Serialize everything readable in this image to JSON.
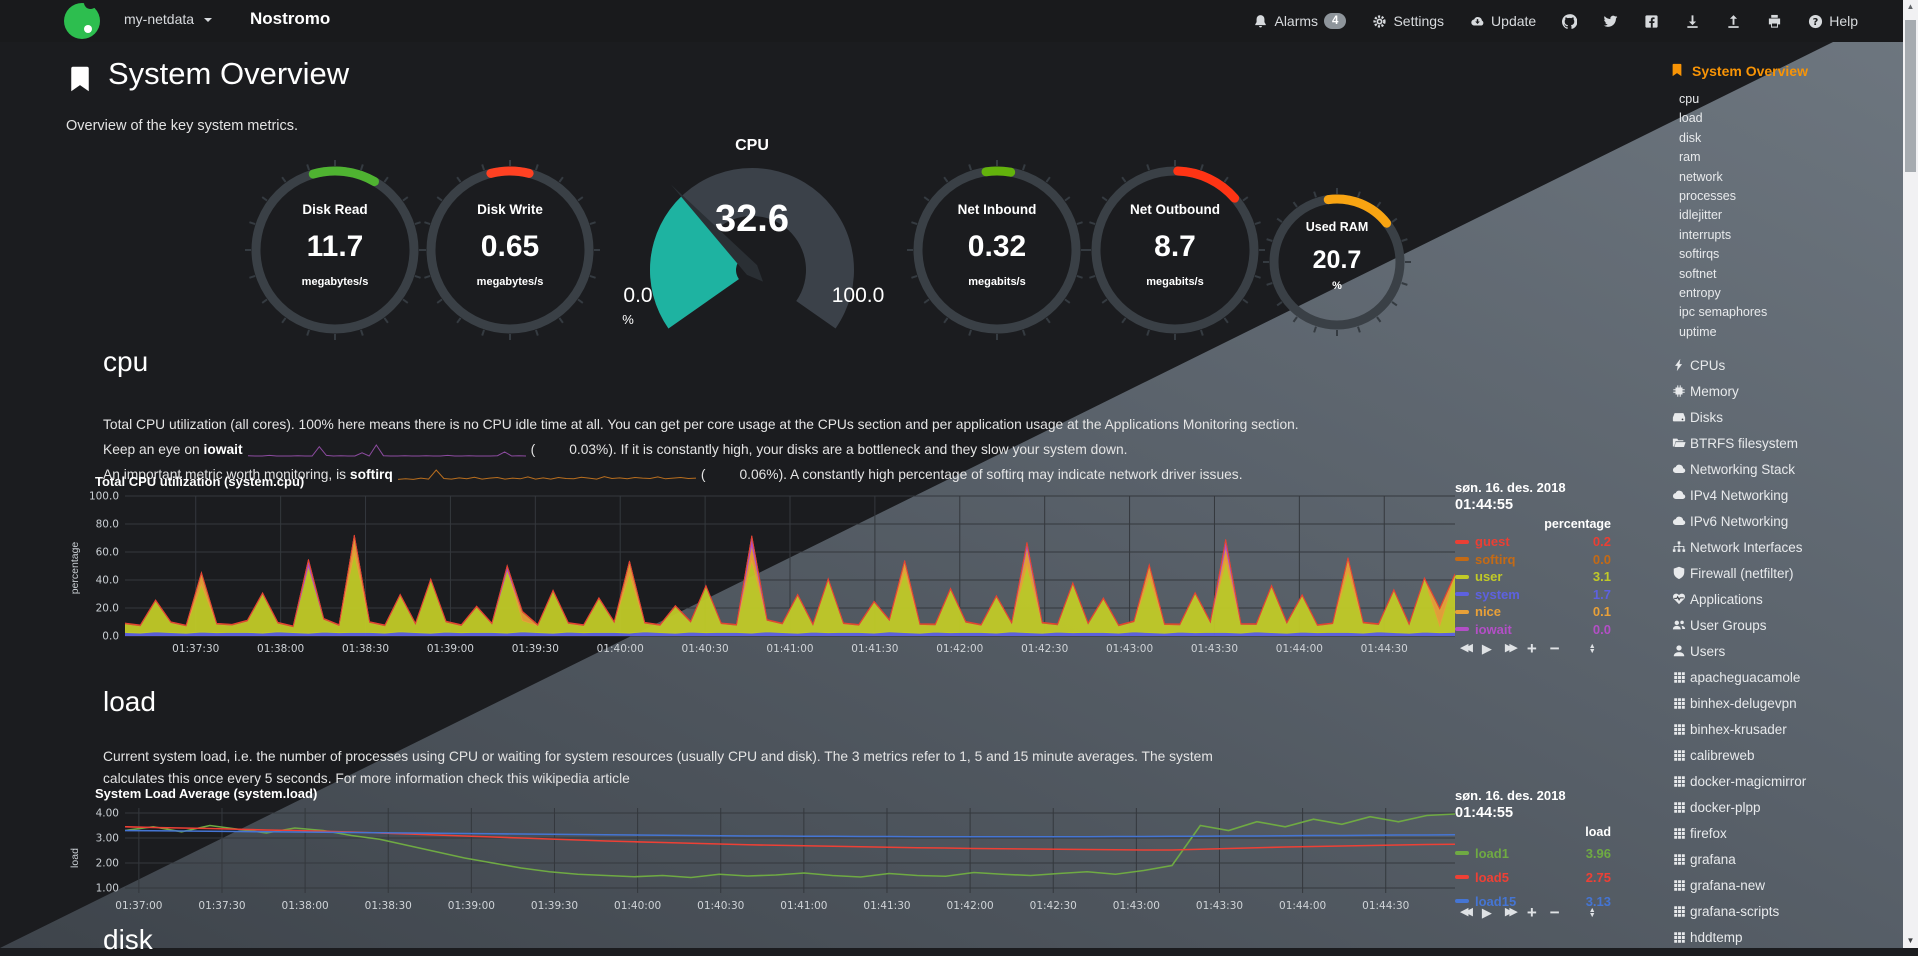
{
  "navbar": {
    "brand": "my-netdata",
    "hostname": "Nostromo",
    "alarms": {
      "label": "Alarms",
      "count": "4"
    },
    "settings_label": "Settings",
    "update_label": "Update",
    "help_label": "Help",
    "icon_names": [
      "bell-icon",
      "gear-icon",
      "cloud-download-icon",
      "github-icon",
      "twitter-icon",
      "facebook-icon",
      "download-icon",
      "upload-icon",
      "print-icon",
      "question-icon"
    ]
  },
  "page": {
    "title": "System Overview",
    "subtitle": "Overview of the key system metrics.",
    "accent_color": "#f89406"
  },
  "gauges": {
    "pies": [
      {
        "title": "Disk Read",
        "value": "11.7",
        "unit": "megabytes/s",
        "color": "#4fb331",
        "arc": [
          -16,
          30
        ]
      },
      {
        "title": "Disk Write",
        "value": "0.65",
        "unit": "megabytes/s",
        "color": "#ff4122",
        "arc": [
          -14,
          14
        ]
      },
      {
        "title": "Net Inbound",
        "value": "0.32",
        "unit": "megabits/s",
        "color": "#63b20c",
        "arc": [
          -8,
          10
        ]
      },
      {
        "title": "Net Outbound",
        "value": "8.7",
        "unit": "megabits/s",
        "color": "#ff3414",
        "arc": [
          2,
          49
        ]
      },
      {
        "title": "Used RAM",
        "value": "20.7",
        "unit": "%",
        "color": "#f8a412",
        "arc": [
          -8,
          52
        ]
      }
    ],
    "cpu_gauge": {
      "title": "CPU",
      "value": "32.6",
      "min": "0.0",
      "max": "100.0",
      "unit": "%",
      "pct": 0.326,
      "fill_color": "#1eb3a1",
      "body_color": "#3b4149",
      "needle_color": "#2a2f34"
    }
  },
  "cpu_section": {
    "heading": "cpu",
    "p1": "Total CPU utilization (all cores). 100% here means there is no CPU idle time at all. You can get per core usage at the CPUs section and per application usage at the Applications Monitoring section.",
    "p2_pre": "Keep an eye on ",
    "p2_bold": "iowait",
    "p2_open": "(",
    "p2_value": "0.03%",
    "p2_post": "). If it is constantly high, your disks are a bottleneck and they slow your system down.",
    "p3_pre": "An important metric worth monitoring, is ",
    "p3_bold": "softirq",
    "p3_open": "(",
    "p3_value": "0.06%",
    "p3_post": "). A constantly high percentage of softirq may indicate network driver issues.",
    "spark_iowait": {
      "color": "#8d4ba0",
      "values": [
        0.1,
        0,
        0,
        0.2,
        0,
        0,
        0,
        0.1,
        0,
        0,
        3.2,
        0.2,
        0,
        0.1,
        0,
        0,
        1.1,
        0,
        3.8,
        0.1,
        0,
        0,
        0.1,
        0,
        0,
        0.1,
        0,
        0,
        0.2,
        0,
        0,
        0.1,
        0,
        0,
        0,
        0.1,
        1.4,
        0,
        0.1,
        0
      ]
    },
    "spark_softirq": {
      "color": "#b96e1e",
      "values": [
        0.5,
        0.7,
        0.5,
        0.9,
        0.6,
        3.5,
        0.8,
        0.6,
        1,
        0.7,
        1.2,
        0.6,
        0.9,
        1.1,
        0.6,
        0.9,
        0.7,
        1.3,
        0.6,
        1,
        0.6,
        1.1,
        0.8,
        0.7,
        1.2,
        0.9,
        0.6,
        1.4,
        0.8,
        1,
        0.7,
        1.1,
        0.9,
        0.8,
        1.3,
        0.7,
        0.9,
        1.1,
        0.8,
        0.9
      ]
    }
  },
  "load_section": {
    "heading": "load",
    "p1": "Current system load, i.e. the number of processes using CPU or waiting for system resources (usually CPU and disk). The 3 metrics refer to 1, 5 and 15 minute averages. The system calculates this once every 5 seconds. For more information check this wikipedia article"
  },
  "disk_section": {
    "heading": "disk"
  },
  "chart_data": [
    {
      "type": "area",
      "stacked": true,
      "title": "Total CPU utilization (system.cpu)",
      "ylabel": "percentage",
      "ylim": [
        0,
        100
      ],
      "yticks": [
        0,
        20,
        40,
        60,
        80,
        100
      ],
      "ytick_labels": [
        "0.0",
        "20.0",
        "40.0",
        "60.0",
        "80.0",
        "100.0"
      ],
      "x_span_seconds": 470,
      "first_tick_offset": 25,
      "tick_interval": 30,
      "x_tick_labels": [
        "01:37:30",
        "01:38:00",
        "01:38:30",
        "01:39:00",
        "01:39:30",
        "01:40:00",
        "01:40:30",
        "01:41:00",
        "01:41:30",
        "01:42:00",
        "01:42:30",
        "01:43:00",
        "01:43:30",
        "01:44:00",
        "01:44:30"
      ],
      "grid": true,
      "legend_position": "right",
      "series": [
        {
          "name": "system",
          "color": "#5d61e0",
          "values": [
            2.5,
            2.1,
            3,
            2.4,
            2,
            2.8,
            2.3,
            2.6,
            2.5,
            2.1,
            3,
            2.4,
            2,
            2.8,
            2.3,
            2.6,
            2.5,
            2.1,
            3,
            2.4,
            2,
            2.8,
            2.3,
            2.6,
            2.5,
            2.1,
            3,
            2.4,
            2,
            2.8,
            2.3,
            2.6,
            2.5,
            2.1,
            3,
            2.4,
            2,
            2.8,
            2.3,
            2.6,
            2.5,
            2.1,
            3,
            2.4,
            2,
            2.8,
            2.3,
            2.6,
            2.5,
            2.1,
            3,
            2.4,
            2,
            2.8,
            2.3,
            2.6,
            2.5,
            2.1,
            3,
            2.4,
            2,
            2.8,
            2.3,
            2.6,
            2.5,
            2.1,
            3,
            2.4,
            2,
            2.8,
            2.3,
            2.6,
            2.5,
            2.1,
            3,
            2.4,
            2,
            2.8,
            2.3,
            2.6,
            2.5,
            2.1,
            3,
            2.4,
            2,
            2.8,
            2.3,
            2.6
          ]
        },
        {
          "name": "user",
          "color": "#c1ca27",
          "values": [
            6,
            5,
            22,
            7,
            5,
            34,
            6,
            5,
            8,
            28,
            6,
            4,
            48,
            9,
            5,
            57,
            7,
            5,
            26,
            6,
            38,
            7,
            5,
            18,
            6,
            45,
            8,
            5,
            30,
            6,
            5,
            24,
            7,
            42,
            6,
            5,
            19,
            7,
            33,
            6,
            5,
            52,
            8,
            6,
            27,
            5,
            38,
            6,
            5,
            22,
            8,
            44,
            6,
            5,
            31,
            7,
            5,
            26,
            6,
            48,
            7,
            5,
            35,
            6,
            24,
            5,
            7,
            40,
            6,
            5,
            28,
            7,
            51,
            6,
            5,
            33,
            7,
            26,
            5,
            6,
            44,
            7,
            5,
            30,
            6,
            38,
            5,
            41
          ]
        },
        {
          "name": "nice",
          "color": "#e8a038",
          "values": [
            0.2,
            0.2,
            0.2,
            0.2,
            0.2,
            8,
            0.2,
            0.2,
            0.2,
            0.2,
            0.2,
            0.2,
            0.2,
            0.2,
            0.2,
            12,
            0.2,
            0.2,
            0.2,
            0.2,
            0.2,
            0.2,
            0.2,
            0.2,
            0.2,
            0.2,
            6,
            0.2,
            0.2,
            0.2,
            0.2,
            0.2,
            0.2,
            9,
            0.2,
            0.2,
            0.2,
            0.2,
            0.2,
            0.2,
            0.2,
            11,
            0.2,
            0.2,
            0.2,
            0.2,
            0.2,
            0.2,
            0.2,
            0.2,
            0.2,
            7,
            0.2,
            0.2,
            0.2,
            0.2,
            0.2,
            0.2,
            0.2,
            13,
            0.2,
            0.2,
            0.2,
            0.2,
            0.2,
            0.2,
            0.2,
            8,
            0.2,
            0.2,
            0.2,
            0.2,
            10,
            0.2,
            0.2,
            0.2,
            0.2,
            0.2,
            0.2,
            0.2,
            9,
            0.2,
            0.2,
            0.2,
            0.2,
            0.2,
            12,
            0.2
          ]
        },
        {
          "name": "iowait",
          "color": "#b34fc6",
          "values": [
            0,
            0,
            0,
            0,
            0,
            0,
            0,
            0,
            0,
            0,
            0,
            0,
            4,
            0,
            0,
            0,
            0,
            0,
            0,
            0,
            0,
            0,
            0,
            0,
            0,
            2.5,
            0,
            0,
            0,
            0,
            0,
            0,
            0,
            0,
            0,
            0,
            0,
            0,
            0,
            0,
            0,
            6,
            0,
            0,
            0,
            0,
            0,
            0,
            0,
            0,
            0,
            0,
            0,
            0,
            0,
            0,
            0,
            0,
            0,
            3,
            0,
            0,
            0,
            0,
            0,
            0,
            0,
            0,
            0,
            0,
            0,
            0,
            5,
            0,
            0,
            0,
            0,
            0,
            0,
            0,
            0,
            0,
            0,
            0,
            0,
            0,
            0,
            0
          ]
        },
        {
          "name": "softirq",
          "color": "#c46a15",
          "values": 0.4
        },
        {
          "name": "guest",
          "color": "#ea3f34",
          "values": 0.2
        }
      ],
      "legend": {
        "date": "søn. 16. des. 2018",
        "time": "01:44:55",
        "unit": "percentage",
        "entries": [
          {
            "name": "guest",
            "value": "0.2",
            "color": "#ea3f34"
          },
          {
            "name": "softirq",
            "value": "0.0",
            "color": "#c46a15"
          },
          {
            "name": "user",
            "value": "3.1",
            "color": "#c1ca27"
          },
          {
            "name": "system",
            "value": "1.7",
            "color": "#5d61e0"
          },
          {
            "name": "nice",
            "value": "0.1",
            "color": "#e8a038"
          },
          {
            "name": "iowait",
            "value": "0.0",
            "color": "#b34fc6"
          }
        ]
      }
    },
    {
      "type": "line",
      "stacked": false,
      "title": "System Load Average (system.load)",
      "ylabel": "load",
      "ylim": [
        0.8,
        4.2
      ],
      "yticks": [
        1,
        2,
        3,
        4
      ],
      "ytick_labels": [
        "1.00",
        "2.00",
        "3.00",
        "4.00"
      ],
      "x_span_seconds": 480,
      "first_tick_offset": 5,
      "tick_interval": 30,
      "x_tick_labels": [
        "01:37:00",
        "01:37:30",
        "01:38:00",
        "01:38:30",
        "01:39:00",
        "01:39:30",
        "01:40:00",
        "01:40:30",
        "01:41:00",
        "01:41:30",
        "01:42:00",
        "01:42:30",
        "01:43:00",
        "01:43:30",
        "01:44:00",
        "01:44:30"
      ],
      "grid": true,
      "legend_position": "right",
      "series": [
        {
          "name": "load1",
          "color": "#6faa43",
          "values": [
            3.3,
            3.45,
            3.25,
            3.5,
            3.35,
            3.2,
            3.4,
            3.3,
            3.1,
            2.95,
            2.7,
            2.45,
            2.2,
            2.0,
            1.8,
            1.65,
            1.55,
            1.5,
            1.45,
            1.5,
            1.42,
            1.55,
            1.48,
            1.52,
            1.6,
            1.5,
            1.44,
            1.58,
            1.5,
            1.47,
            1.62,
            1.55,
            1.5,
            1.58,
            1.65,
            1.55,
            1.7,
            1.9,
            3.5,
            3.3,
            3.65,
            3.45,
            3.75,
            3.55,
            3.85,
            3.65,
            3.9,
            3.96
          ]
        },
        {
          "name": "load5",
          "color": "#ee4035",
          "values": [
            3.45,
            3.42,
            3.4,
            3.38,
            3.35,
            3.32,
            3.3,
            3.27,
            3.24,
            3.2,
            3.16,
            3.12,
            3.08,
            3.04,
            3.0,
            2.96,
            2.92,
            2.88,
            2.85,
            2.82,
            2.79,
            2.76,
            2.73,
            2.71,
            2.69,
            2.67,
            2.65,
            2.63,
            2.61,
            2.6,
            2.58,
            2.57,
            2.56,
            2.55,
            2.54,
            2.53,
            2.52,
            2.52,
            2.55,
            2.58,
            2.61,
            2.64,
            2.66,
            2.68,
            2.7,
            2.72,
            2.74,
            2.75
          ]
        },
        {
          "name": "load15",
          "color": "#4575d3",
          "values": [
            3.3,
            3.29,
            3.28,
            3.27,
            3.26,
            3.25,
            3.24,
            3.23,
            3.22,
            3.21,
            3.2,
            3.19,
            3.18,
            3.17,
            3.16,
            3.15,
            3.14,
            3.13,
            3.12,
            3.11,
            3.1,
            3.09,
            3.08,
            3.08,
            3.07,
            3.07,
            3.06,
            3.06,
            3.05,
            3.05,
            3.05,
            3.05,
            3.05,
            3.05,
            3.05,
            3.06,
            3.06,
            3.07,
            3.07,
            3.08,
            3.08,
            3.09,
            3.1,
            3.1,
            3.11,
            3.12,
            3.12,
            3.13
          ]
        }
      ],
      "legend": {
        "date": "søn. 16. des. 2018",
        "time": "01:44:55",
        "unit": "load",
        "entries": [
          {
            "name": "load1",
            "value": "3.96",
            "color": "#6faa43"
          },
          {
            "name": "load5",
            "value": "2.75",
            "color": "#ee4035"
          },
          {
            "name": "load15",
            "value": "3.13",
            "color": "#4575d3"
          }
        ]
      }
    }
  ],
  "sidebar": {
    "active": {
      "label": "System Overview",
      "icon": "bookmark-icon"
    },
    "submenu": [
      "cpu",
      "load",
      "disk",
      "ram",
      "network",
      "processes",
      "idlejitter",
      "interrupts",
      "softirqs",
      "softnet",
      "entropy",
      "ipc semaphores",
      "uptime"
    ],
    "sections": [
      {
        "label": "CPUs",
        "icon": "bolt-icon"
      },
      {
        "label": "Memory",
        "icon": "microchip-icon"
      },
      {
        "label": "Disks",
        "icon": "hdd-icon"
      },
      {
        "label": "BTRFS filesystem",
        "icon": "folder-open-icon"
      },
      {
        "label": "Networking Stack",
        "icon": "cloud-icon"
      },
      {
        "label": "IPv4 Networking",
        "icon": "cloud-icon"
      },
      {
        "label": "IPv6 Networking",
        "icon": "cloud-icon"
      },
      {
        "label": "Network Interfaces",
        "icon": "sitemap-icon"
      },
      {
        "label": "Firewall (netfilter)",
        "icon": "shield-icon"
      },
      {
        "label": "Applications",
        "icon": "heartbeat-icon"
      },
      {
        "label": "User Groups",
        "icon": "users-icon"
      },
      {
        "label": "Users",
        "icon": "user-icon"
      },
      {
        "label": "apacheguacamole",
        "icon": "grid-icon"
      },
      {
        "label": "binhex-delugevpn",
        "icon": "grid-icon"
      },
      {
        "label": "binhex-krusader",
        "icon": "grid-icon"
      },
      {
        "label": "calibreweb",
        "icon": "grid-icon"
      },
      {
        "label": "docker-magicmirror",
        "icon": "grid-icon"
      },
      {
        "label": "docker-plpp",
        "icon": "grid-icon"
      },
      {
        "label": "firefox",
        "icon": "grid-icon"
      },
      {
        "label": "grafana",
        "icon": "grid-icon"
      },
      {
        "label": "grafana-new",
        "icon": "grid-icon"
      },
      {
        "label": "grafana-scripts",
        "icon": "grid-icon"
      },
      {
        "label": "hddtemp",
        "icon": "grid-icon"
      }
    ]
  }
}
